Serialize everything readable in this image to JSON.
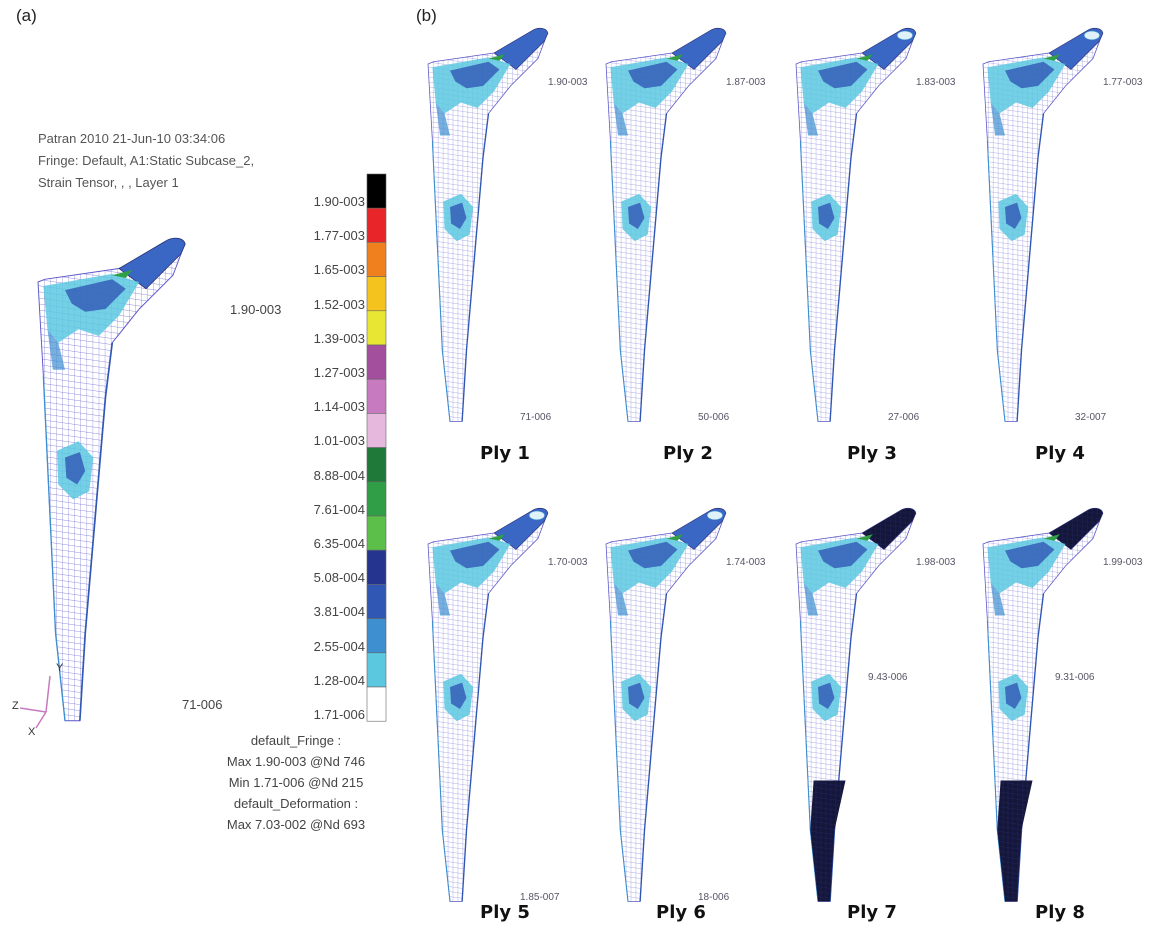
{
  "panels": {
    "a": {
      "letter": "(a)"
    },
    "b": {
      "letter": "(b)"
    }
  },
  "patran_header": {
    "line1": "Patran 2010 21-Jun-10 03:34:06",
    "line2": "Fringe: Default, A1:Static Subcase_2,",
    "line3": "Strain Tensor, , , Layer 1"
  },
  "color_scale": {
    "labels": [
      "1.90-003",
      "1.77-003",
      "1.65-003",
      "1.52-003",
      "1.39-003",
      "1.27-003",
      "1.14-003",
      "1.01-003",
      "8.88-004",
      "7.61-004",
      "6.35-004",
      "5.08-004",
      "3.81-004",
      "2.55-004",
      "1.28-004",
      "1.71-006"
    ],
    "colors": [
      "#000000",
      "#e8262a",
      "#f07f1e",
      "#f5c31e",
      "#e8e632",
      "#a34f9e",
      "#c77ac0",
      "#e6b8de",
      "#1f7a3a",
      "#2f9e46",
      "#5cbf4a",
      "#25358f",
      "#3157b5",
      "#3d8fd0",
      "#5cc8e0",
      "#ffffff"
    ]
  },
  "fringe_info": {
    "line1": "default_Fringe :",
    "line2": "Max 1.90-003 @Nd 746",
    "line3": "Min 1.71-006 @Nd 215",
    "line4": "default_Deformation :",
    "line5": "Max 7.03-002 @Nd 693"
  },
  "axes_triad": {
    "y": "Y",
    "z": "Z",
    "x": "X"
  },
  "model_a": {
    "max_label": "1.90-003",
    "min_label": "71-006"
  },
  "plies": [
    {
      "label": "Ply 1",
      "max_label": "1.90-003",
      "min_label": "71-006"
    },
    {
      "label": "Ply 2",
      "max_label": "1.87-003",
      "min_label": "50-006"
    },
    {
      "label": "Ply 3",
      "max_label": "1.83-003",
      "min_label": "27-006"
    },
    {
      "label": "Ply 4",
      "max_label": "1.77-003",
      "min_label": "32-007"
    },
    {
      "label": "Ply 5",
      "max_label": "1.70-003",
      "min_label": "1.85-007"
    },
    {
      "label": "Ply 6",
      "max_label": "1.74-003",
      "min_label": "18-006"
    },
    {
      "label": "Ply 7",
      "max_label": "1.98-003",
      "min_label": "9.43-006"
    },
    {
      "label": "Ply 8",
      "max_label": "1.99-003",
      "min_label": "9.31-006"
    }
  ]
}
